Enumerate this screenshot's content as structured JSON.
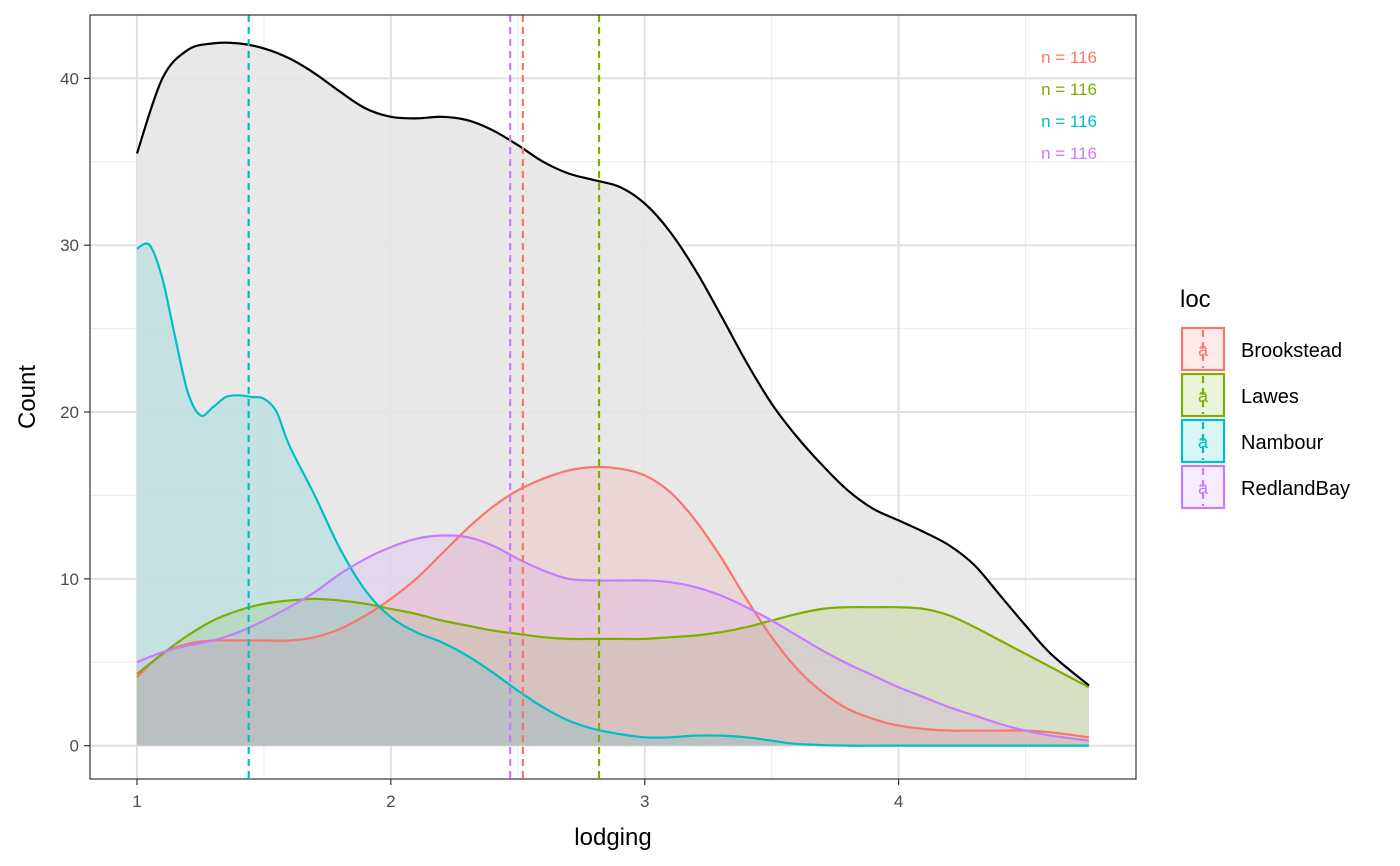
{
  "chart_data": {
    "type": "area",
    "title": "",
    "xlabel": "lodging",
    "ylabel": "Count",
    "xlim": [
      0.815,
      4.935
    ],
    "ylim": [
      -2.0,
      43.8
    ],
    "x_ticks": [
      1,
      2,
      3,
      4
    ],
    "y_ticks": [
      0,
      10,
      20,
      30,
      40
    ],
    "x_minor_ticks": [
      1.5,
      2.5,
      3.5,
      4.5
    ],
    "y_minor_ticks": [
      5,
      15,
      25,
      35
    ],
    "grid": true,
    "legend": {
      "title": "loc",
      "position": "right",
      "key_glyph": "a"
    },
    "total": {
      "color": "#000000",
      "fill": "#e5e5e5",
      "x": [
        1.0,
        1.1,
        1.2,
        1.3,
        1.4,
        1.5,
        1.6,
        1.7,
        1.8,
        1.9,
        2.0,
        2.1,
        2.2,
        2.3,
        2.4,
        2.5,
        2.6,
        2.7,
        2.8,
        2.9,
        3.0,
        3.1,
        3.2,
        3.3,
        3.4,
        3.5,
        3.6,
        3.7,
        3.8,
        3.9,
        4.0,
        4.1,
        4.2,
        4.3,
        4.4,
        4.5,
        4.6,
        4.75
      ],
      "y": [
        35.5,
        40.0,
        41.7,
        42.1,
        42.1,
        41.8,
        41.2,
        40.3,
        39.2,
        38.2,
        37.7,
        37.6,
        37.7,
        37.5,
        36.9,
        36.0,
        35.0,
        34.3,
        33.9,
        33.5,
        32.5,
        30.8,
        28.5,
        25.8,
        23.0,
        20.5,
        18.5,
        16.8,
        15.3,
        14.2,
        13.5,
        12.8,
        12.0,
        10.8,
        9.0,
        7.2,
        5.5,
        3.6
      ]
    },
    "series": [
      {
        "name": "Brookstead",
        "color": "#f8766d",
        "mean": 2.52,
        "n_label": "n = 116",
        "x": [
          1.0,
          1.1,
          1.2,
          1.3,
          1.4,
          1.5,
          1.6,
          1.7,
          1.8,
          1.9,
          2.0,
          2.1,
          2.2,
          2.3,
          2.4,
          2.5,
          2.6,
          2.7,
          2.8,
          2.9,
          3.0,
          3.1,
          3.2,
          3.3,
          3.4,
          3.5,
          3.6,
          3.7,
          3.8,
          3.9,
          4.0,
          4.1,
          4.2,
          4.3,
          4.4,
          4.5,
          4.6,
          4.75
        ],
        "y": [
          4.1,
          5.5,
          6.1,
          6.3,
          6.3,
          6.3,
          6.3,
          6.5,
          7.0,
          7.8,
          8.8,
          10.0,
          11.5,
          13.0,
          14.3,
          15.3,
          16.0,
          16.5,
          16.7,
          16.6,
          16.2,
          15.2,
          13.5,
          11.3,
          8.8,
          6.5,
          4.6,
          3.2,
          2.2,
          1.6,
          1.2,
          1.0,
          0.9,
          0.9,
          0.9,
          0.9,
          0.8,
          0.5
        ]
      },
      {
        "name": "Lawes",
        "color": "#7cae00",
        "mean": 2.82,
        "n_label": "n = 116",
        "x": [
          1.0,
          1.1,
          1.2,
          1.3,
          1.4,
          1.5,
          1.6,
          1.7,
          1.8,
          1.9,
          2.0,
          2.1,
          2.2,
          2.3,
          2.4,
          2.5,
          2.6,
          2.7,
          2.8,
          2.9,
          3.0,
          3.1,
          3.2,
          3.3,
          3.4,
          3.5,
          3.6,
          3.7,
          3.8,
          3.9,
          4.0,
          4.1,
          4.2,
          4.3,
          4.4,
          4.5,
          4.6,
          4.75
        ],
        "y": [
          4.3,
          5.5,
          6.6,
          7.5,
          8.1,
          8.5,
          8.7,
          8.8,
          8.7,
          8.5,
          8.2,
          7.9,
          7.5,
          7.2,
          6.9,
          6.7,
          6.5,
          6.4,
          6.4,
          6.4,
          6.4,
          6.5,
          6.6,
          6.8,
          7.1,
          7.5,
          7.9,
          8.2,
          8.3,
          8.3,
          8.3,
          8.2,
          7.8,
          7.1,
          6.3,
          5.5,
          4.7,
          3.5
        ]
      },
      {
        "name": "Nambour",
        "color": "#00bfc4",
        "mean": 1.44,
        "n_label": "n = 116",
        "x": [
          1.0,
          1.05,
          1.1,
          1.15,
          1.2,
          1.25,
          1.3,
          1.35,
          1.4,
          1.45,
          1.5,
          1.55,
          1.6,
          1.7,
          1.8,
          1.9,
          2.0,
          2.1,
          2.2,
          2.3,
          2.4,
          2.5,
          2.6,
          2.7,
          2.8,
          2.9,
          3.0,
          3.1,
          3.2,
          3.3,
          3.4,
          3.5,
          3.6,
          3.8,
          4.0,
          4.75
        ],
        "y": [
          29.8,
          30.0,
          28.0,
          24.5,
          21.2,
          19.8,
          20.3,
          20.9,
          21.0,
          20.9,
          20.8,
          20.0,
          18.0,
          15.0,
          11.8,
          9.3,
          7.7,
          6.8,
          6.2,
          5.4,
          4.4,
          3.3,
          2.3,
          1.5,
          1.0,
          0.7,
          0.5,
          0.5,
          0.6,
          0.6,
          0.5,
          0.3,
          0.1,
          0.0,
          0.0,
          0.0
        ]
      },
      {
        "name": "RedlandBay",
        "color": "#c77cff",
        "mean": 2.47,
        "n_label": "n = 116",
        "x": [
          1.0,
          1.1,
          1.2,
          1.3,
          1.4,
          1.5,
          1.6,
          1.7,
          1.8,
          1.9,
          2.0,
          2.1,
          2.2,
          2.3,
          2.4,
          2.5,
          2.6,
          2.7,
          2.8,
          2.9,
          3.0,
          3.1,
          3.2,
          3.3,
          3.4,
          3.5,
          3.6,
          3.7,
          3.8,
          3.9,
          4.0,
          4.1,
          4.2,
          4.3,
          4.4,
          4.5,
          4.6,
          4.75
        ],
        "y": [
          5.0,
          5.6,
          6.0,
          6.3,
          6.8,
          7.5,
          8.3,
          9.2,
          10.3,
          11.2,
          11.9,
          12.4,
          12.6,
          12.5,
          12.0,
          11.2,
          10.5,
          10.0,
          9.9,
          9.9,
          9.9,
          9.8,
          9.5,
          9.0,
          8.3,
          7.5,
          6.6,
          5.7,
          4.9,
          4.2,
          3.5,
          2.9,
          2.3,
          1.8,
          1.3,
          0.9,
          0.6,
          0.3
        ]
      }
    ]
  }
}
